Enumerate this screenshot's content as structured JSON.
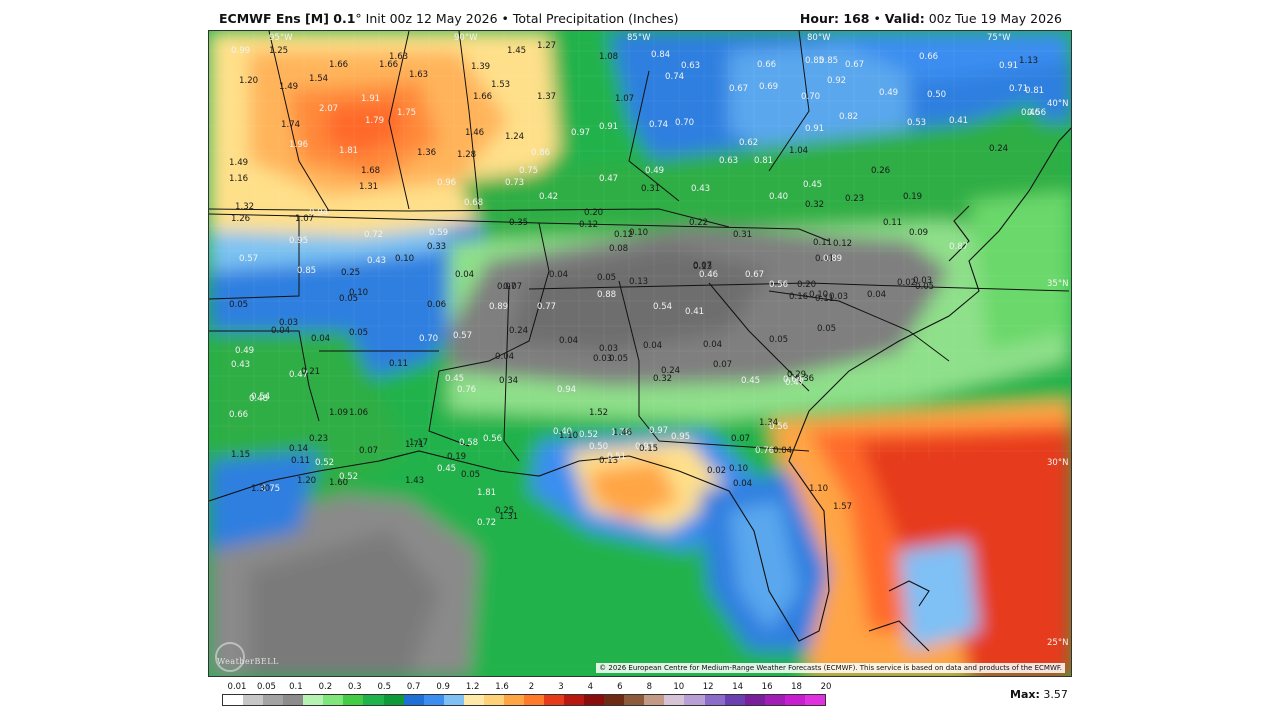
{
  "header": {
    "model": "ECMWF Ens [M] 0.1",
    "degree": "°",
    "init": " Init 00z 12 May 2026 • Total Precipitation (Inches)",
    "hour_label": "Hour: 168",
    "sep": " • ",
    "valid_label": "Valid:",
    "valid_value": " 00z Tue 19 May 2026"
  },
  "map": {
    "copyright": "© 2026 European Centre for Medium-Range Weather Forecasts (ECMWF). This service is based on data and products of the ECMWF.",
    "logo": "WeatherBELL",
    "longitudes": [
      {
        "label": "95°W"
      },
      {
        "label": "90°W"
      },
      {
        "label": "85°W"
      },
      {
        "label": "80°W"
      },
      {
        "label": "75°W"
      }
    ],
    "latitudes": [
      {
        "label": "40°N"
      },
      {
        "label": "35°N"
      },
      {
        "label": "30°N"
      },
      {
        "label": "25°N"
      }
    ],
    "values": [
      {
        "t": "0.99"
      },
      {
        "t": "1.25"
      },
      {
        "t": "1.66"
      },
      {
        "t": "1.63"
      },
      {
        "t": "1.66"
      },
      {
        "t": "1.45"
      },
      {
        "t": "1.27"
      },
      {
        "t": "1.08"
      },
      {
        "t": "0.84"
      },
      {
        "t": "0.63"
      },
      {
        "t": "0.74"
      },
      {
        "t": "0.66"
      },
      {
        "t": "0.85"
      },
      {
        "t": "0.85"
      },
      {
        "t": "0.67"
      },
      {
        "t": "0.66"
      },
      {
        "t": "0.91"
      },
      {
        "t": "1.13"
      },
      {
        "t": "1.20"
      },
      {
        "t": "1.49"
      },
      {
        "t": "1.54"
      },
      {
        "t": "1.63"
      },
      {
        "t": "1.39"
      },
      {
        "t": "1.53"
      },
      {
        "t": "1.66"
      },
      {
        "t": "1.37"
      },
      {
        "t": "1.07"
      },
      {
        "t": "0.67"
      },
      {
        "t": "0.69"
      },
      {
        "t": "0.92"
      },
      {
        "t": "0.70"
      },
      {
        "t": "0.49"
      },
      {
        "t": "0.50"
      },
      {
        "t": "0.71"
      },
      {
        "t": "0.81"
      },
      {
        "t": "2.07"
      },
      {
        "t": "1.91"
      },
      {
        "t": "1.75"
      },
      {
        "t": "1.79"
      },
      {
        "t": "0.46"
      },
      {
        "t": "0.56"
      },
      {
        "t": "0.53"
      },
      {
        "t": "0.41"
      },
      {
        "t": "0.91"
      },
      {
        "t": "0.82"
      },
      {
        "t": "1.74"
      },
      {
        "t": "1.46"
      },
      {
        "t": "1.24"
      },
      {
        "t": "0.97"
      },
      {
        "t": "0.91"
      },
      {
        "t": "0.74"
      },
      {
        "t": "0.70"
      },
      {
        "t": "0.62"
      },
      {
        "t": "1.96"
      },
      {
        "t": "1.81"
      },
      {
        "t": "1.36"
      },
      {
        "t": "1.28"
      },
      {
        "t": "0.86"
      },
      {
        "t": "0.63"
      },
      {
        "t": "0.81"
      },
      {
        "t": "1.04"
      },
      {
        "t": "0.26"
      },
      {
        "t": "0.24"
      },
      {
        "t": "1.49"
      },
      {
        "t": "1.68"
      },
      {
        "t": "0.75"
      },
      {
        "t": "0.49"
      },
      {
        "t": "1.16"
      },
      {
        "t": "1.31"
      },
      {
        "t": "0.96"
      },
      {
        "t": "0.73"
      },
      {
        "t": "0.47"
      },
      {
        "t": "0.31"
      },
      {
        "t": "0.43"
      },
      {
        "t": "0.45"
      },
      {
        "t": "0.19"
      },
      {
        "t": "1.32"
      },
      {
        "t": "0.42"
      },
      {
        "t": "0.40"
      },
      {
        "t": "0.32"
      },
      {
        "t": "0.23"
      },
      {
        "t": "1.26"
      },
      {
        "t": "1.07"
      },
      {
        "t": "0.94"
      },
      {
        "t": "0.68"
      },
      {
        "t": "0.20"
      },
      {
        "t": "0.12"
      },
      {
        "t": "0.35"
      },
      {
        "t": "0.12"
      },
      {
        "t": "0.10"
      },
      {
        "t": "0.22"
      },
      {
        "t": "0.11"
      },
      {
        "t": "0.31"
      },
      {
        "t": "0.13"
      },
      {
        "t": "0.72"
      },
      {
        "t": "0.59"
      },
      {
        "t": "0.95"
      },
      {
        "t": "0.33"
      },
      {
        "t": "0.08"
      },
      {
        "t": "0.11"
      },
      {
        "t": "0.12"
      },
      {
        "t": "0.09"
      },
      {
        "t": "0.87"
      },
      {
        "t": "0.57"
      },
      {
        "t": "0.43"
      },
      {
        "t": "0.10"
      },
      {
        "t": "0.11"
      },
      {
        "t": "0.89"
      },
      {
        "t": "0.85"
      },
      {
        "t": "0.25"
      },
      {
        "t": "0.04"
      },
      {
        "t": "0.04"
      },
      {
        "t": "0.05"
      },
      {
        "t": "0.13"
      },
      {
        "t": "0.07"
      },
      {
        "t": "0.67"
      },
      {
        "t": "0.46"
      },
      {
        "t": "0.07"
      },
      {
        "t": "0.03"
      },
      {
        "t": "0.05"
      },
      {
        "t": "0.10"
      },
      {
        "t": "0.07"
      },
      {
        "t": "0.88"
      },
      {
        "t": "0.56"
      },
      {
        "t": "0.20"
      },
      {
        "t": "0.10"
      },
      {
        "t": "0.04"
      },
      {
        "t": "0.02"
      },
      {
        "t": "0.05"
      },
      {
        "t": "0.05"
      },
      {
        "t": "0.06"
      },
      {
        "t": "0.89"
      },
      {
        "t": "0.77"
      },
      {
        "t": "0.54"
      },
      {
        "t": "0.41"
      },
      {
        "t": "0.16"
      },
      {
        "t": "0.11"
      },
      {
        "t": "0.03"
      },
      {
        "t": "0.03"
      },
      {
        "t": "0.04"
      },
      {
        "t": "0.04"
      },
      {
        "t": "0.05"
      },
      {
        "t": "0.70"
      },
      {
        "t": "0.57"
      },
      {
        "t": "0.24"
      },
      {
        "t": "0.04"
      },
      {
        "t": "0.03"
      },
      {
        "t": "0.04"
      },
      {
        "t": "0.04"
      },
      {
        "t": "0.05"
      },
      {
        "t": "0.49"
      },
      {
        "t": "0.43"
      },
      {
        "t": "0.11"
      },
      {
        "t": "0.04"
      },
      {
        "t": "0.03"
      },
      {
        "t": "0.05"
      },
      {
        "t": "0.07"
      },
      {
        "t": "0.05"
      },
      {
        "t": "0.47"
      },
      {
        "t": "0.21"
      },
      {
        "t": "0.45"
      },
      {
        "t": "0.34"
      },
      {
        "t": "0.32"
      },
      {
        "t": "0.24"
      },
      {
        "t": "0.36"
      },
      {
        "t": "0.47"
      },
      {
        "t": "0.29"
      },
      {
        "t": "0.48"
      },
      {
        "t": "0.76"
      },
      {
        "t": "0.94"
      },
      {
        "t": "0.45"
      },
      {
        "t": "0.64"
      },
      {
        "t": "0.54"
      },
      {
        "t": "0.66"
      },
      {
        "t": "1.09"
      },
      {
        "t": "1.06"
      },
      {
        "t": "1.17"
      },
      {
        "t": "0.58"
      },
      {
        "t": "0.40"
      },
      {
        "t": "1.78"
      },
      {
        "t": "1.34"
      },
      {
        "t": "0.56"
      },
      {
        "t": "1.52"
      },
      {
        "t": "1.46"
      },
      {
        "t": "0.52"
      },
      {
        "t": "0.50"
      },
      {
        "t": "1.15"
      },
      {
        "t": "0.14"
      },
      {
        "t": "0.23"
      },
      {
        "t": "1.71"
      },
      {
        "t": "0.56"
      },
      {
        "t": "1.10"
      },
      {
        "t": "0.98"
      },
      {
        "t": "0.15"
      },
      {
        "t": "0.11"
      },
      {
        "t": "0.07"
      },
      {
        "t": "0.19"
      },
      {
        "t": "0.52"
      },
      {
        "t": "0.97"
      },
      {
        "t": "0.95"
      },
      {
        "t": "0.76"
      },
      {
        "t": "0.07"
      },
      {
        "t": "0.04"
      },
      {
        "t": "0.13"
      },
      {
        "t": "0.51"
      },
      {
        "t": "0.75"
      },
      {
        "t": "1.20"
      },
      {
        "t": "0.05"
      },
      {
        "t": "0.02"
      },
      {
        "t": "0.10"
      },
      {
        "t": "0.04"
      },
      {
        "t": "1.30"
      },
      {
        "t": "1.60"
      },
      {
        "t": "0.52"
      },
      {
        "t": "1.43"
      },
      {
        "t": "1.81"
      },
      {
        "t": "0.72"
      },
      {
        "t": "1.10"
      },
      {
        "t": "1.57"
      },
      {
        "t": "0.45"
      },
      {
        "t": "0.25"
      },
      {
        "t": "1.31"
      }
    ]
  },
  "colorbar": {
    "labels": [
      "0.01",
      "0.05",
      "0.1",
      "0.2",
      "0.3",
      "0.5",
      "0.7",
      "0.9",
      "1.2",
      "1.6",
      "2",
      "3",
      "4",
      "6",
      "8",
      "10",
      "12",
      "14",
      "16",
      "18",
      "20"
    ],
    "colors": [
      "#ffffff",
      "#c7c7c7",
      "#a3a3a3",
      "#8c8c8c",
      "#b6f2b2",
      "#7ee67a",
      "#45cc45",
      "#1fb34a",
      "#0f9a3a",
      "#1e6fd6",
      "#3b8ef0",
      "#7fc0f5",
      "#ffe9a8",
      "#ffd27a",
      "#ffa544",
      "#ff7a2a",
      "#e63a1a",
      "#b8180f",
      "#8a0d0d",
      "#6e2b13",
      "#8e5a3c",
      "#c29a86",
      "#d6c4d6",
      "#b8a0d6",
      "#8c6cc9",
      "#6a3fb0",
      "#7a1f9a",
      "#a21cb6",
      "#c71fcf",
      "#e030e0"
    ],
    "max_label": "Max:",
    "max_value": " 3.57"
  }
}
